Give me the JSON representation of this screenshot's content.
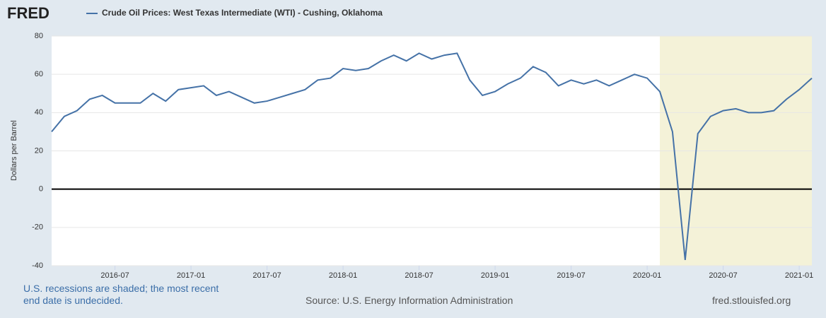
{
  "chart_data": {
    "type": "line",
    "logo": "FRED",
    "y_label": "Dollars per Barrel",
    "note": "U.S. recessions are shaded; the most recent end date is undecided.",
    "source": "Source: U.S. Energy Information Administration",
    "url": "fred.stlouisfed.org",
    "x": [
      "2016-02",
      "2016-03",
      "2016-04",
      "2016-05",
      "2016-06",
      "2016-07",
      "2016-08",
      "2016-09",
      "2016-10",
      "2016-11",
      "2016-12",
      "2017-01",
      "2017-02",
      "2017-03",
      "2017-04",
      "2017-05",
      "2017-06",
      "2017-07",
      "2017-08",
      "2017-09",
      "2017-10",
      "2017-11",
      "2017-12",
      "2018-01",
      "2018-02",
      "2018-03",
      "2018-04",
      "2018-05",
      "2018-06",
      "2018-07",
      "2018-08",
      "2018-09",
      "2018-10",
      "2018-11",
      "2018-12",
      "2019-01",
      "2019-02",
      "2019-03",
      "2019-04",
      "2019-05",
      "2019-06",
      "2019-07",
      "2019-08",
      "2019-09",
      "2019-10",
      "2019-11",
      "2019-12",
      "2020-01",
      "2020-02",
      "2020-03",
      "2020-04",
      "2020-05",
      "2020-06",
      "2020-07",
      "2020-08",
      "2020-09",
      "2020-10",
      "2020-11",
      "2020-12",
      "2021-01",
      "2021-02"
    ],
    "series": [
      {
        "name": "Crude Oil Prices: West Texas Intermediate (WTI) - Cushing, Oklahoma",
        "color": "#4572a7",
        "values": [
          30,
          38,
          41,
          47,
          49,
          45,
          45,
          45,
          50,
          46,
          52,
          53,
          54,
          49,
          51,
          48,
          45,
          46,
          48,
          50,
          52,
          57,
          58,
          63,
          62,
          63,
          67,
          70,
          67,
          71,
          68,
          70,
          71,
          57,
          49,
          51,
          55,
          58,
          64,
          61,
          54,
          57,
          55,
          57,
          54,
          57,
          60,
          58,
          51,
          30,
          -37,
          29,
          38,
          41,
          42,
          40,
          40,
          41,
          47,
          52,
          58
        ]
      }
    ],
    "xlim": [
      "2016-02",
      "2021-02"
    ],
    "xticks": [
      "2016-07",
      "2017-01",
      "2017-07",
      "2018-01",
      "2018-07",
      "2019-01",
      "2019-07",
      "2020-01",
      "2020-07",
      "2021-01"
    ],
    "ylim": [
      -40,
      80
    ],
    "yticks": [
      -40,
      -20,
      0,
      20,
      40,
      60,
      80
    ],
    "hline": 0,
    "shaded": {
      "start": "2020-02",
      "end": "2021-02",
      "color": "#f4f2d8"
    },
    "grid": true
  }
}
